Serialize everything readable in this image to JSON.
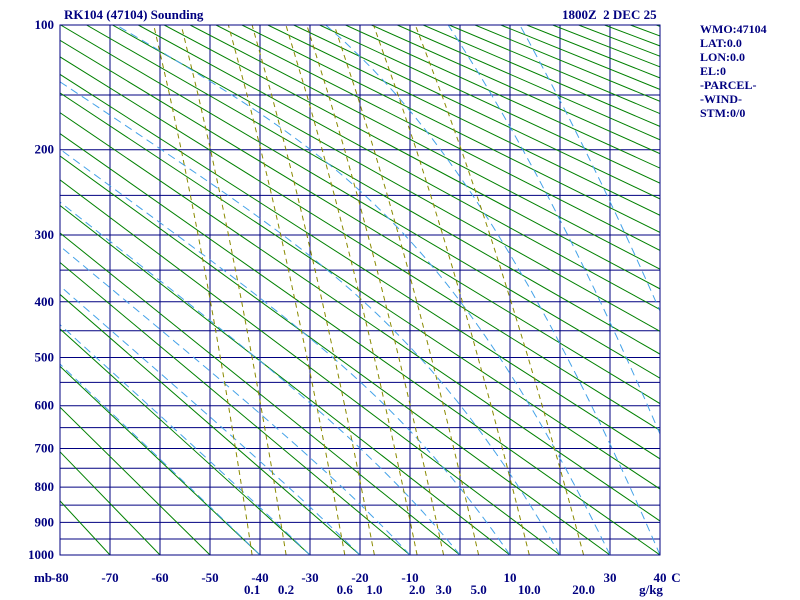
{
  "header": {
    "title": "RK104 (47104) Sounding",
    "datetime": "1800Z  2 DEC 25"
  },
  "info_panel": {
    "lines": [
      "WMO:47104",
      "LAT:0.0",
      "LON:0.0",
      "EL:0",
      "-PARCEL-",
      "-WIND-",
      "STM:0/0"
    ]
  },
  "chart_data": {
    "type": "line",
    "diagram": "stuve-thermodynamic-sounding",
    "title": "RK104 (47104) Sounding",
    "timestamp": "1800Z  2 DEC 25",
    "x_axis": {
      "unit_label": "C",
      "min": -80,
      "max": 40,
      "gridline_step_c": 10,
      "tick_labels": [
        {
          "value": -80,
          "label": "-80"
        },
        {
          "value": -70,
          "label": "-70"
        },
        {
          "value": -60,
          "label": "-60"
        },
        {
          "value": -50,
          "label": "-50"
        },
        {
          "value": -40,
          "label": "-40"
        },
        {
          "value": -30,
          "label": "-30"
        },
        {
          "value": -20,
          "label": "-20"
        },
        {
          "value": -10,
          "label": "-10"
        },
        {
          "value": 10,
          "label": "10"
        },
        {
          "value": 30,
          "label": "30"
        },
        {
          "value": 40,
          "label": "40"
        }
      ]
    },
    "y_axis": {
      "unit_label": "mb",
      "min": 100,
      "max": 1000,
      "scale": "p^0.2857 (Stuve)",
      "isobar_gridline_step_mb": 50,
      "tick_labels": [
        {
          "value": 100,
          "label": "100"
        },
        {
          "value": 200,
          "label": "200"
        },
        {
          "value": 300,
          "label": "300"
        },
        {
          "value": 400,
          "label": "400"
        },
        {
          "value": 500,
          "label": "500"
        },
        {
          "value": 600,
          "label": "600"
        },
        {
          "value": 700,
          "label": "700"
        },
        {
          "value": 800,
          "label": "800"
        },
        {
          "value": 900,
          "label": "900"
        },
        {
          "value": 1000,
          "label": "1000"
        }
      ]
    },
    "dry_adiabats": {
      "theta_c_min": -80,
      "theta_c_max": 330,
      "step_c": 10,
      "style": "solid"
    },
    "moist_adiabats": {
      "thetaw_c_min": -40,
      "thetaw_c_max": 60,
      "step_c": 10,
      "style": "dashed"
    },
    "mixing_ratio_lines": {
      "style": "dashed",
      "unit_label": "g/kg",
      "values": [
        {
          "value": 0.1,
          "label": "0.1"
        },
        {
          "value": 0.2,
          "label": "0.2"
        },
        {
          "value": 0.6,
          "label": "0.6"
        },
        {
          "value": 1,
          "label": "1.0"
        },
        {
          "value": 2,
          "label": "2.0"
        },
        {
          "value": 3,
          "label": "3.0"
        },
        {
          "value": 5,
          "label": "5.0"
        },
        {
          "value": 10,
          "label": "10.0"
        },
        {
          "value": 20,
          "label": "20.0"
        }
      ]
    },
    "series": [],
    "note": "empty sounding chart - no temperature/dewpoint trace, parcel or wind data plotted",
    "colors": {
      "grid": "#000080",
      "text": "#000080",
      "dry_adiabat": "#008000",
      "moist_adiabat": "#44a2e8",
      "mixing_ratio": "#8a8a00",
      "mixing_label": "#cc6600",
      "background": "#ffffff"
    }
  }
}
